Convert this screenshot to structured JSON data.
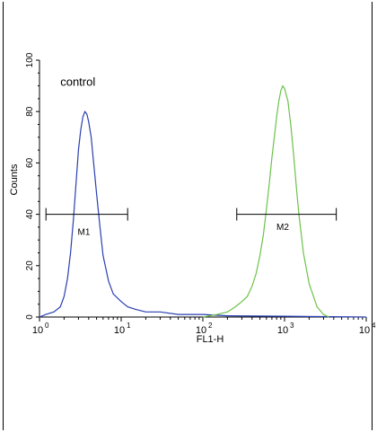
{
  "chart_data": {
    "type": "line",
    "xlabel": "FL1-H",
    "ylabel": "Counts",
    "xscale": "log",
    "xlim": [
      1,
      10000
    ],
    "ylim": [
      0,
      100
    ],
    "x_ticks": [
      {
        "base": "10",
        "exp": "0"
      },
      {
        "base": "10",
        "exp": "1"
      },
      {
        "base": "10",
        "exp": "2"
      },
      {
        "base": "10",
        "exp": "3"
      },
      {
        "base": "10",
        "exp": "4"
      }
    ],
    "y_ticks": [
      "0",
      "20",
      "40",
      "60",
      "80",
      "100"
    ],
    "annotations": [
      {
        "text": "control",
        "x": 1.8,
        "y": 90
      },
      {
        "text": "M1",
        "x": 3.5,
        "y": 32
      },
      {
        "text": "M2",
        "x": 950,
        "y": 34
      }
    ],
    "markers": [
      {
        "label": "M1",
        "x_start": 1.2,
        "x_end": 12,
        "y": 40
      },
      {
        "label": "M2",
        "x_start": 260,
        "x_end": 4300,
        "y": 40
      }
    ],
    "series": [
      {
        "color": "#2a3fb0",
        "points": [
          [
            1,
            0
          ],
          [
            1.2,
            1
          ],
          [
            1.5,
            2
          ],
          [
            1.8,
            4
          ],
          [
            2.0,
            8
          ],
          [
            2.2,
            15
          ],
          [
            2.4,
            25
          ],
          [
            2.6,
            38
          ],
          [
            2.8,
            52
          ],
          [
            3.0,
            65
          ],
          [
            3.2,
            73
          ],
          [
            3.4,
            78
          ],
          [
            3.6,
            80
          ],
          [
            3.8,
            79
          ],
          [
            4.0,
            76
          ],
          [
            4.3,
            70
          ],
          [
            4.6,
            60
          ],
          [
            5.0,
            48
          ],
          [
            5.5,
            35
          ],
          [
            6.0,
            24
          ],
          [
            7.0,
            14
          ],
          [
            8.0,
            9
          ],
          [
            10,
            6
          ],
          [
            12,
            4
          ],
          [
            15,
            3
          ],
          [
            20,
            2
          ],
          [
            30,
            2
          ],
          [
            50,
            1
          ],
          [
            100,
            1
          ],
          [
            200,
            0.5
          ],
          [
            1000,
            0.3
          ],
          [
            10000,
            0
          ]
        ]
      },
      {
        "color": "#6cc24a",
        "points": [
          [
            100,
            0
          ],
          [
            150,
            1
          ],
          [
            200,
            2
          ],
          [
            250,
            4
          ],
          [
            300,
            6
          ],
          [
            350,
            8
          ],
          [
            400,
            12
          ],
          [
            450,
            17
          ],
          [
            500,
            24
          ],
          [
            550,
            32
          ],
          [
            600,
            42
          ],
          [
            650,
            52
          ],
          [
            700,
            62
          ],
          [
            750,
            70
          ],
          [
            800,
            78
          ],
          [
            850,
            84
          ],
          [
            900,
            88
          ],
          [
            950,
            90
          ],
          [
            1000,
            89
          ],
          [
            1100,
            84
          ],
          [
            1200,
            74
          ],
          [
            1300,
            62
          ],
          [
            1400,
            50
          ],
          [
            1500,
            40
          ],
          [
            1700,
            25
          ],
          [
            2000,
            13
          ],
          [
            2500,
            4
          ],
          [
            3000,
            1
          ],
          [
            3500,
            0
          ]
        ]
      }
    ]
  }
}
